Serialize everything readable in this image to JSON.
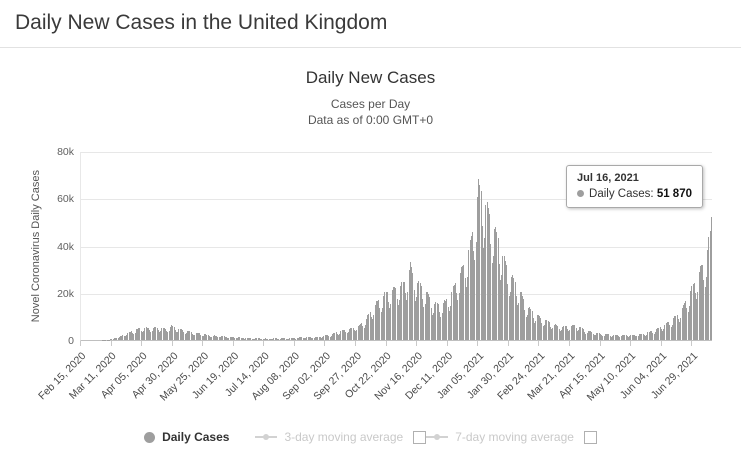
{
  "header": {
    "title": "Daily New Cases in the United Kingdom"
  },
  "chart": {
    "title": "Daily New Cases",
    "subtitle": "Cases per Day",
    "note": "Data as of 0:00 GMT+0",
    "y_axis_title": "Novel Coronavirus Daily Cases"
  },
  "tooltip": {
    "date": "Jul 16, 2021",
    "series_label": "Daily Cases:",
    "value": "51 870"
  },
  "legend": {
    "items": [
      {
        "label": "Daily Cases",
        "enabled": true
      },
      {
        "label": "3-day moving average",
        "enabled": false
      },
      {
        "label": "7-day moving average",
        "enabled": false
      }
    ]
  },
  "colors": {
    "bar": "#9e9e9e",
    "grid": "#e7e7e7",
    "disabled_legend": "#c9c9c9"
  },
  "chart_data": {
    "type": "bar",
    "title": "Daily New Cases",
    "subtitle": "Cases per Day",
    "note": "Data as of 0:00 GMT+0",
    "series_name": "Daily Cases",
    "xlabel": "",
    "ylabel": "Novel Coronavirus Daily Cases",
    "ylim": [
      0,
      80000
    ],
    "yticks": [
      "0",
      "20k",
      "40k",
      "60k",
      "80k"
    ],
    "x_start_date": "Feb 15, 2020",
    "x_end_date": "Jul 16, 2021",
    "total_days": 517,
    "x_tick_interval_days": 25,
    "x_tick_labels": [
      "Feb 15, 2020",
      "Mar 11, 2020",
      "Apr 05, 2020",
      "Apr 30, 2020",
      "May 25, 2020",
      "Jun 19, 2020",
      "Jul 14, 2020",
      "Aug 08, 2020",
      "Sep 02, 2020",
      "Sep 27, 2020",
      "Oct 22, 2020",
      "Nov 16, 2020",
      "Dec 11, 2020",
      "Jan 05, 2021",
      "Jan 30, 2021",
      "Feb 24, 2021",
      "Mar 21, 2021",
      "Apr 15, 2021",
      "May 10, 2021",
      "Jun 04, 2021",
      "Jun 29, 2021"
    ],
    "anchors_day_value": [
      [
        0,
        5
      ],
      [
        6,
        8
      ],
      [
        12,
        15
      ],
      [
        18,
        60
      ],
      [
        24,
        350
      ],
      [
        30,
        1200
      ],
      [
        36,
        2600
      ],
      [
        42,
        4200
      ],
      [
        48,
        5200
      ],
      [
        54,
        5400
      ],
      [
        60,
        5600
      ],
      [
        66,
        5200
      ],
      [
        70,
        4900
      ],
      [
        74,
        6200
      ],
      [
        78,
        5200
      ],
      [
        84,
        4300
      ],
      [
        90,
        3600
      ],
      [
        96,
        3000
      ],
      [
        102,
        2400
      ],
      [
        108,
        2000
      ],
      [
        114,
        1700
      ],
      [
        120,
        1400
      ],
      [
        126,
        1200
      ],
      [
        132,
        1050
      ],
      [
        138,
        900
      ],
      [
        144,
        750
      ],
      [
        150,
        650
      ],
      [
        156,
        650
      ],
      [
        162,
        700
      ],
      [
        168,
        800
      ],
      [
        174,
        950
      ],
      [
        180,
        1100
      ],
      [
        186,
        1200
      ],
      [
        192,
        1350
      ],
      [
        198,
        1700
      ],
      [
        204,
        2400
      ],
      [
        210,
        3600
      ],
      [
        216,
        4400
      ],
      [
        222,
        5200
      ],
      [
        228,
        6500
      ],
      [
        234,
        9500
      ],
      [
        240,
        15000
      ],
      [
        246,
        19000
      ],
      [
        252,
        21500
      ],
      [
        258,
        23000
      ],
      [
        263,
        24500
      ],
      [
        267,
        27000
      ],
      [
        270,
        33000
      ],
      [
        274,
        26500
      ],
      [
        279,
        24000
      ],
      [
        284,
        20500
      ],
      [
        289,
        16300
      ],
      [
        294,
        15800
      ],
      [
        299,
        17000
      ],
      [
        304,
        21500
      ],
      [
        309,
        27500
      ],
      [
        314,
        33000
      ],
      [
        318,
        40000
      ],
      [
        322,
        50000
      ],
      [
        326,
        68000
      ],
      [
        330,
        63000
      ],
      [
        334,
        57000
      ],
      [
        338,
        51000
      ],
      [
        342,
        45000
      ],
      [
        347,
        35500
      ],
      [
        352,
        29000
      ],
      [
        357,
        25000
      ],
      [
        362,
        19000
      ],
      [
        366,
        15000
      ],
      [
        371,
        12200
      ],
      [
        376,
        10200
      ],
      [
        381,
        8800
      ],
      [
        386,
        7300
      ],
      [
        391,
        6200
      ],
      [
        396,
        5900
      ],
      [
        401,
        6300
      ],
      [
        406,
        6500
      ],
      [
        410,
        5400
      ],
      [
        414,
        4300
      ],
      [
        419,
        3600
      ],
      [
        424,
        3000
      ],
      [
        429,
        2600
      ],
      [
        434,
        2400
      ],
      [
        439,
        2300
      ],
      [
        444,
        2250
      ],
      [
        449,
        2250
      ],
      [
        454,
        2300
      ],
      [
        459,
        2600
      ],
      [
        464,
        3200
      ],
      [
        469,
        4100
      ],
      [
        474,
        5300
      ],
      [
        479,
        6900
      ],
      [
        484,
        8700
      ],
      [
        489,
        11000
      ],
      [
        494,
        15000
      ],
      [
        499,
        20500
      ],
      [
        504,
        26500
      ],
      [
        508,
        31500
      ],
      [
        511,
        34000
      ],
      [
        514,
        40000
      ],
      [
        516,
        47000
      ],
      [
        517,
        51870
      ]
    ],
    "weekly_modulation": [
      0.75,
      0.62,
      0.7,
      0.95,
      1.0,
      0.98,
      0.96
    ],
    "last_point": {
      "date": "Jul 16, 2021",
      "value": 51870
    }
  }
}
